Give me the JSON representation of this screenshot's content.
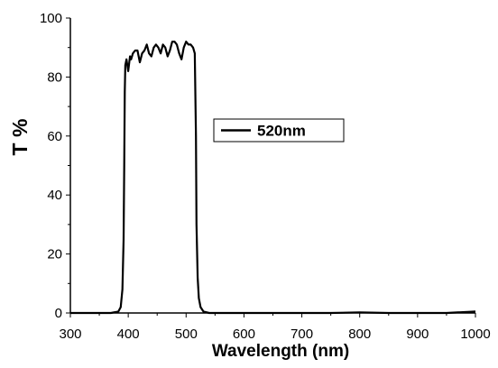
{
  "chart_data": {
    "type": "line",
    "xlabel": "Wavelength (nm)",
    "ylabel": "T %",
    "xlim": [
      300,
      1000
    ],
    "ylim": [
      0,
      100
    ],
    "x_ticks": [
      300,
      400,
      500,
      600,
      700,
      800,
      900,
      1000
    ],
    "y_ticks": [
      0,
      20,
      40,
      60,
      80,
      100
    ],
    "grid": false,
    "legend_position": "upper-center",
    "series": [
      {
        "name": "520nm",
        "color": "#000000",
        "x": [
          300,
          340,
          370,
          383,
          387,
          390,
          392,
          393,
          394,
          395,
          397,
          400,
          403,
          405,
          408,
          412,
          416,
          420,
          424,
          428,
          432,
          436,
          440,
          444,
          448,
          452,
          456,
          460,
          464,
          468,
          472,
          476,
          480,
          484,
          488,
          492,
          496,
          500,
          504,
          508,
          512,
          515,
          517,
          518,
          520,
          522,
          525,
          530,
          540,
          560,
          600,
          650,
          700,
          750,
          800,
          850,
          900,
          950,
          990,
          1000
        ],
        "y": [
          0,
          0,
          0,
          0.5,
          2,
          8,
          25,
          50,
          75,
          84,
          86,
          82,
          87,
          86,
          88,
          89,
          89,
          85,
          88,
          89,
          91,
          88,
          87,
          90,
          91,
          90,
          88,
          91,
          90,
          87,
          89,
          92,
          92,
          91,
          88,
          86,
          90,
          92,
          91,
          91,
          90,
          88,
          60,
          30,
          12,
          5,
          2,
          0.5,
          0,
          0,
          0,
          0,
          0,
          0,
          0.2,
          0,
          0,
          0,
          0.4,
          0.5
        ]
      }
    ]
  }
}
